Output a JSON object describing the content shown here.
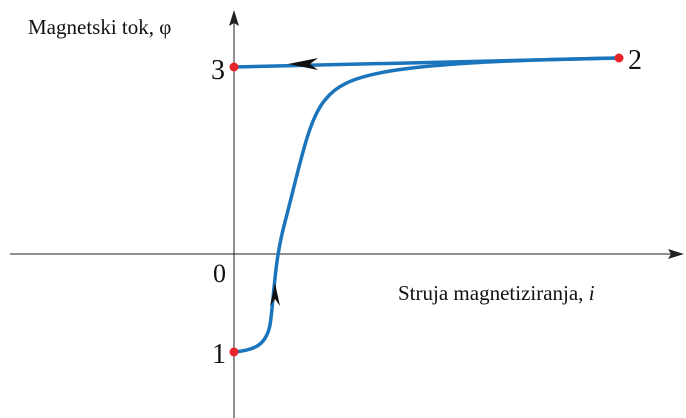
{
  "axes": {
    "y_label": "Magnetski tok, φ",
    "x_label": "Struja magnetiziranja,",
    "x_symbol": "i"
  },
  "origin": "0",
  "points": [
    {
      "label": "1"
    },
    {
      "label": "2"
    },
    {
      "label": "3"
    }
  ]
}
